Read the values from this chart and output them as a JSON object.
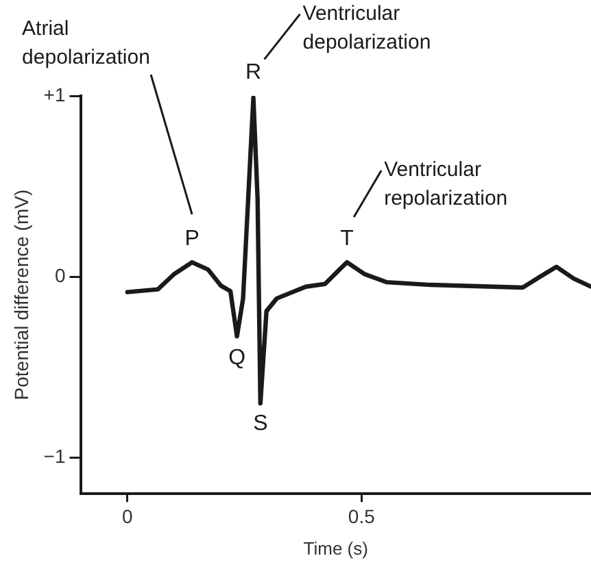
{
  "chart_data": {
    "type": "line",
    "xlabel": "Time (s)",
    "ylabel": "Potential difference (mV)",
    "x": [
      0,
      0.065,
      0.1,
      0.138,
      0.172,
      0.2,
      0.22,
      0.234,
      0.247,
      0.269,
      0.278,
      0.284,
      0.297,
      0.319,
      0.381,
      0.422,
      0.453,
      0.469,
      0.506,
      0.553,
      0.647,
      0.844,
      0.881,
      0.916,
      0.953,
      0.99
    ],
    "series": [
      {
        "color": "#1a1a1a",
        "values": [
          -0.085,
          -0.07,
          0.015,
          0.08,
          0.04,
          -0.05,
          -0.08,
          -0.33,
          -0.12,
          0.99,
          0.43,
          -0.7,
          -0.19,
          -0.12,
          -0.055,
          -0.04,
          0.04,
          0.08,
          0.015,
          -0.03,
          -0.045,
          -0.06,
          0,
          0.055,
          -0.01,
          -0.055
        ]
      }
    ],
    "xlim": [
      -0.1,
      0.99
    ],
    "ylim": [
      -1.2,
      1.0
    ],
    "xticks": [
      0,
      0.5
    ],
    "yticks": [
      -1,
      0,
      {
        "value": 1,
        "label": "+1"
      }
    ],
    "marker": "none",
    "line_style": "solid",
    "legend": false,
    "annotations": [
      {
        "text": "P",
        "x": 0.138,
        "y": 0.08
      },
      {
        "text": "Q",
        "x": 0.234,
        "y": -0.33
      },
      {
        "text": "R",
        "x": 0.269,
        "y": 0.99
      },
      {
        "text": "S",
        "x": 0.284,
        "y": -0.7
      },
      {
        "text": "T",
        "x": 0.469,
        "y": 0.08
      },
      "Atrial depolarization",
      "Ventricular depolarization",
      "Ventricular repolarization"
    ]
  }
}
